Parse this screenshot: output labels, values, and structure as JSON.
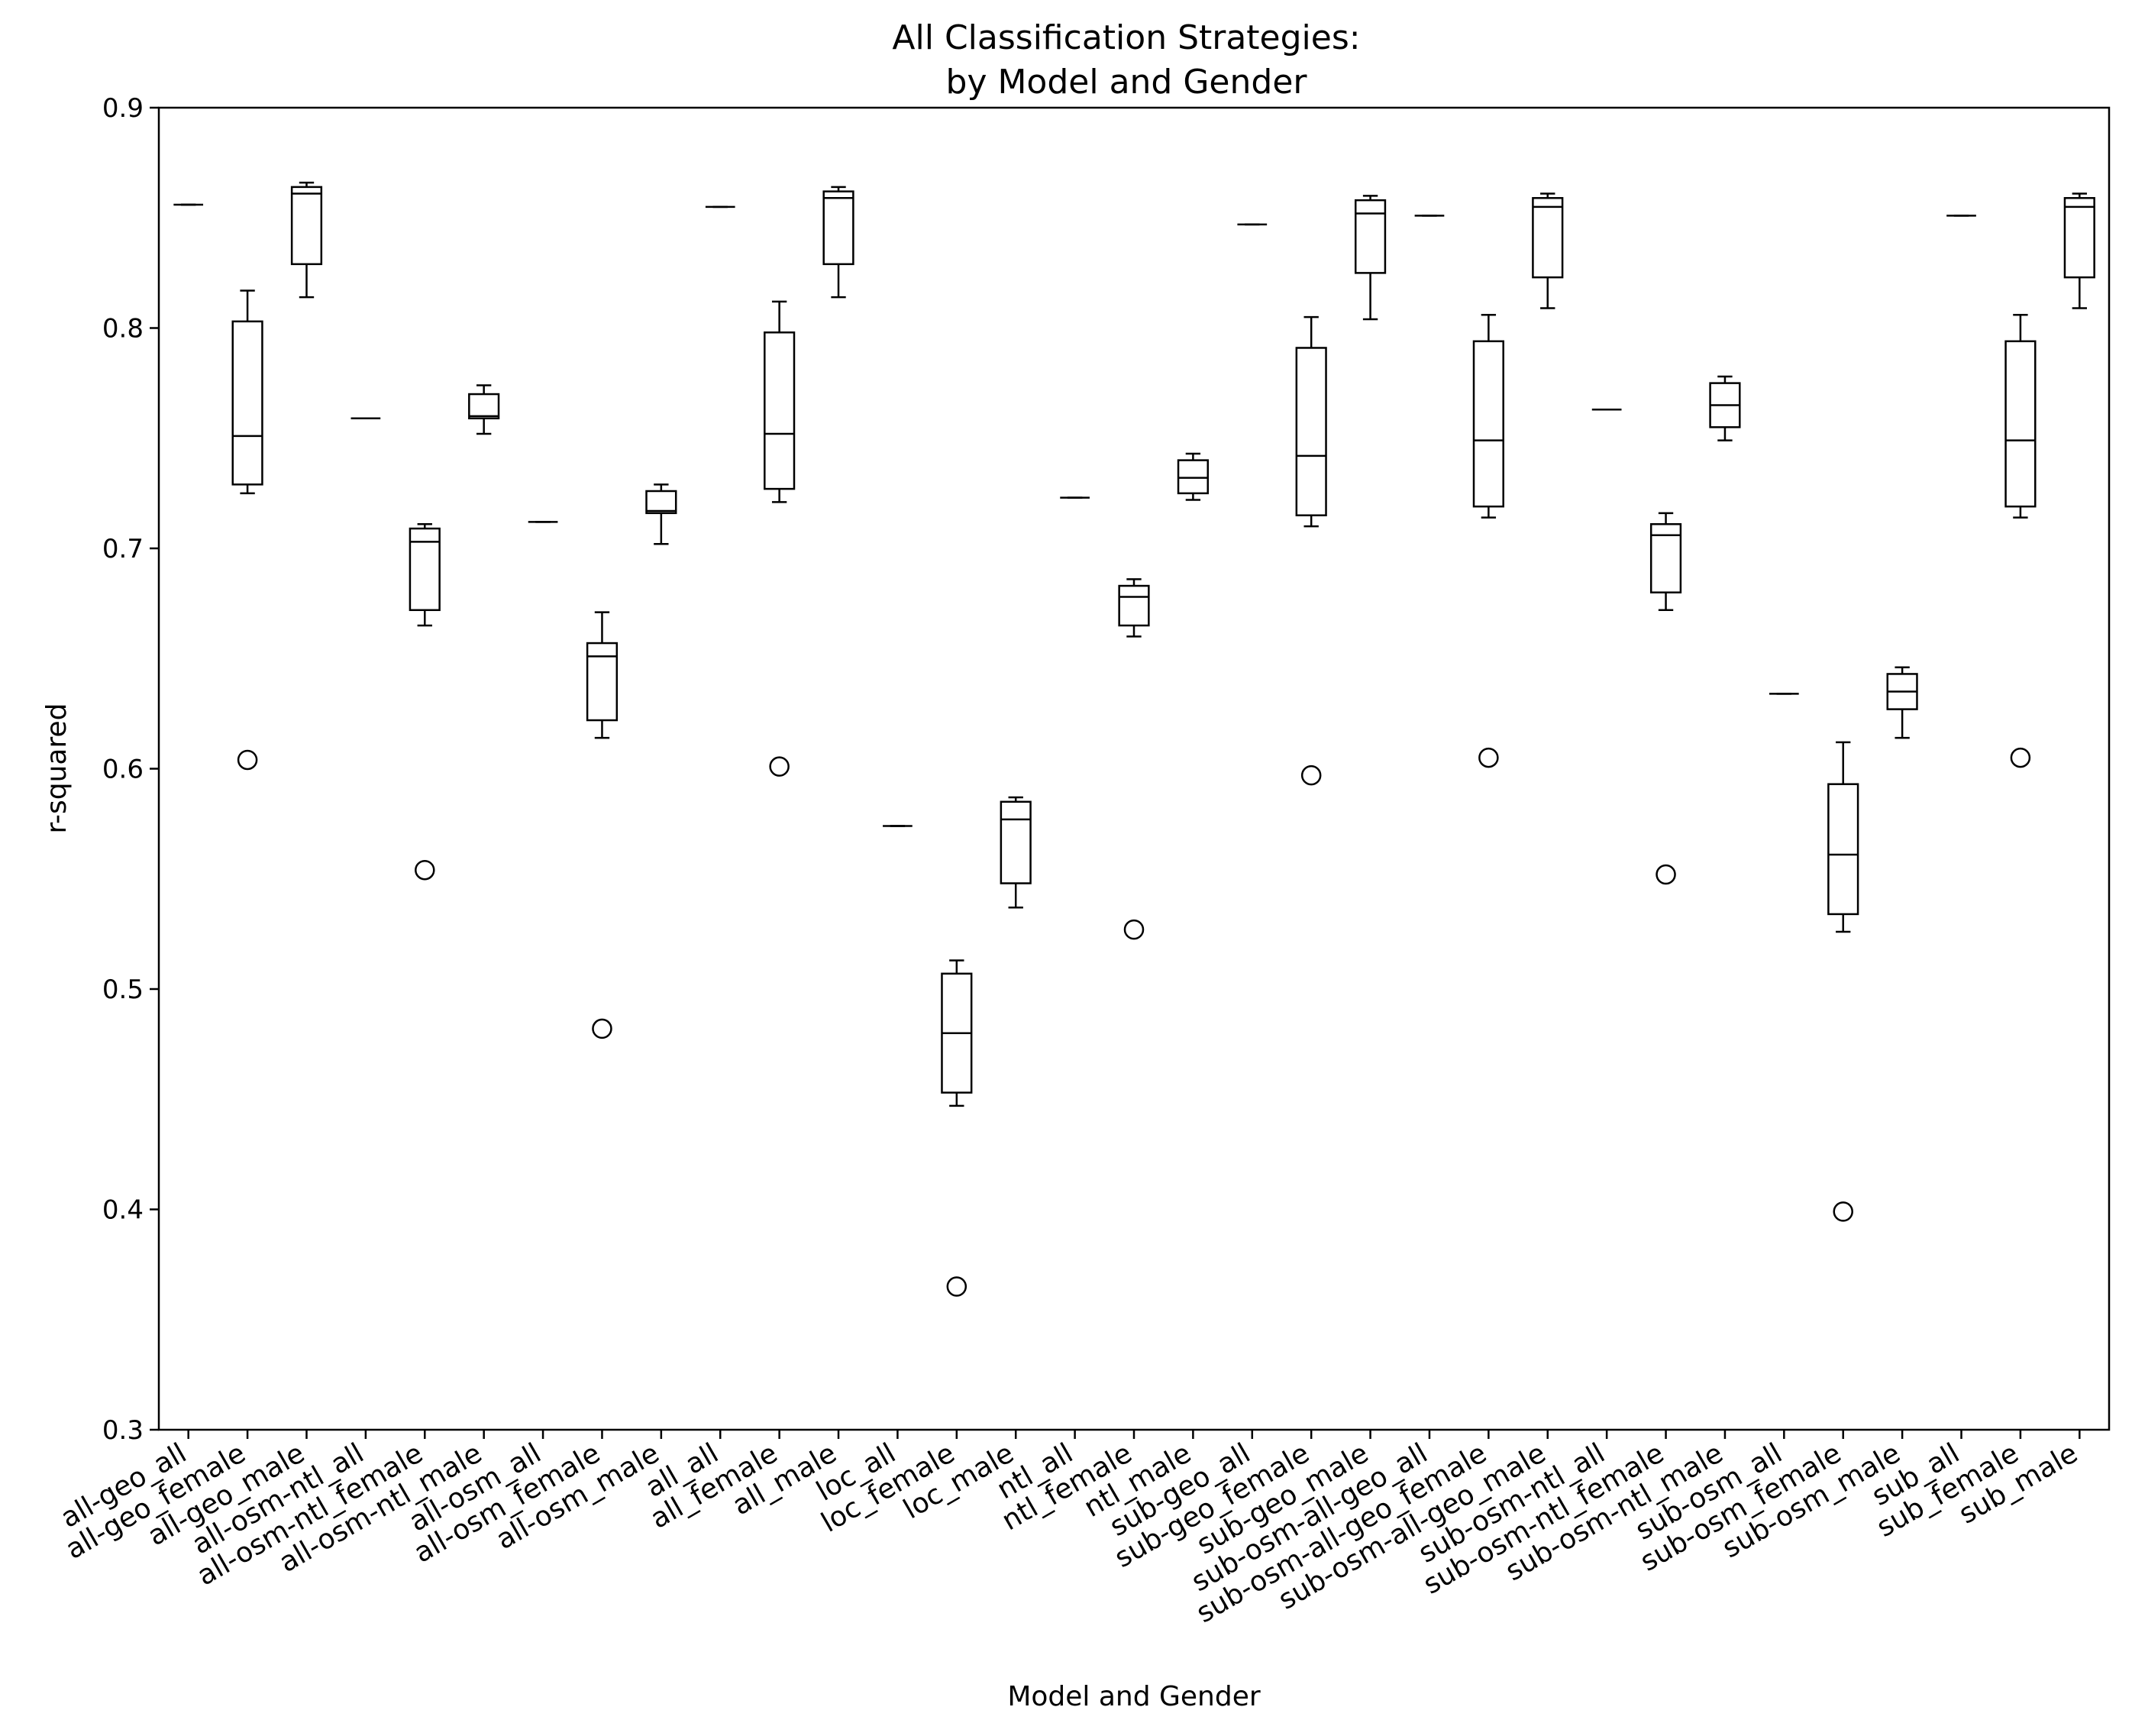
{
  "chart_data": {
    "type": "box",
    "title": "All Classification Strategies:",
    "subtitle": "by Model and Gender",
    "xlabel": "Model and Gender",
    "ylabel": "r-squared",
    "ylim": [
      0.3,
      0.9
    ],
    "yticks": [
      "0.3",
      "0.4",
      "0.5",
      "0.6",
      "0.7",
      "0.8",
      "0.9"
    ],
    "grid": false,
    "categories": [
      "all-geo_all",
      "all-geo_female",
      "all-geo_male",
      "all-osm-ntl_all",
      "all-osm-ntl_female",
      "all-osm-ntl_male",
      "all-osm_all",
      "all-osm_female",
      "all-osm_male",
      "all_all",
      "all_female",
      "all_male",
      "loc_all",
      "loc_female",
      "loc_male",
      "ntl_all",
      "ntl_female",
      "ntl_male",
      "sub-geo_all",
      "sub-geo_female",
      "sub-geo_male",
      "sub-osm-all-geo_all",
      "sub-osm-all-geo_female",
      "sub-osm-all-geo_male",
      "sub-osm-ntl_all",
      "sub-osm-ntl_female",
      "sub-osm-ntl_male",
      "sub-osm_all",
      "sub-osm_female",
      "sub-osm_male",
      "sub_all",
      "sub_female",
      "sub_male"
    ],
    "boxes": [
      {
        "whislo": 0.856,
        "q1": 0.856,
        "med": 0.856,
        "q3": 0.856,
        "whishi": 0.856,
        "fliers": []
      },
      {
        "whislo": 0.725,
        "q1": 0.729,
        "med": 0.751,
        "q3": 0.803,
        "whishi": 0.817,
        "fliers": [
          0.604
        ]
      },
      {
        "whislo": 0.814,
        "q1": 0.829,
        "med": 0.861,
        "q3": 0.864,
        "whishi": 0.866,
        "fliers": []
      },
      {
        "whislo": 0.759,
        "q1": 0.759,
        "med": 0.759,
        "q3": 0.759,
        "whishi": 0.759,
        "fliers": []
      },
      {
        "whislo": 0.665,
        "q1": 0.672,
        "med": 0.703,
        "q3": 0.709,
        "whishi": 0.711,
        "fliers": [
          0.554
        ]
      },
      {
        "whislo": 0.752,
        "q1": 0.759,
        "med": 0.76,
        "q3": 0.77,
        "whishi": 0.774,
        "fliers": []
      },
      {
        "whislo": 0.712,
        "q1": 0.712,
        "med": 0.712,
        "q3": 0.712,
        "whishi": 0.712,
        "fliers": []
      },
      {
        "whislo": 0.614,
        "q1": 0.622,
        "med": 0.651,
        "q3": 0.657,
        "whishi": 0.671,
        "fliers": [
          0.482
        ]
      },
      {
        "whislo": 0.702,
        "q1": 0.716,
        "med": 0.717,
        "q3": 0.726,
        "whishi": 0.729,
        "fliers": []
      },
      {
        "whislo": 0.855,
        "q1": 0.855,
        "med": 0.855,
        "q3": 0.855,
        "whishi": 0.855,
        "fliers": []
      },
      {
        "whislo": 0.721,
        "q1": 0.727,
        "med": 0.752,
        "q3": 0.798,
        "whishi": 0.812,
        "fliers": [
          0.601
        ]
      },
      {
        "whislo": 0.814,
        "q1": 0.829,
        "med": 0.859,
        "q3": 0.862,
        "whishi": 0.864,
        "fliers": []
      },
      {
        "whislo": 0.574,
        "q1": 0.574,
        "med": 0.574,
        "q3": 0.574,
        "whishi": 0.574,
        "fliers": []
      },
      {
        "whislo": 0.447,
        "q1": 0.453,
        "med": 0.48,
        "q3": 0.507,
        "whishi": 0.513,
        "fliers": [
          0.365
        ]
      },
      {
        "whislo": 0.537,
        "q1": 0.548,
        "med": 0.577,
        "q3": 0.585,
        "whishi": 0.587,
        "fliers": []
      },
      {
        "whislo": 0.723,
        "q1": 0.723,
        "med": 0.723,
        "q3": 0.723,
        "whishi": 0.723,
        "fliers": []
      },
      {
        "whislo": 0.66,
        "q1": 0.665,
        "med": 0.678,
        "q3": 0.683,
        "whishi": 0.686,
        "fliers": [
          0.527
        ]
      },
      {
        "whislo": 0.722,
        "q1": 0.725,
        "med": 0.732,
        "q3": 0.74,
        "whishi": 0.743,
        "fliers": []
      },
      {
        "whislo": 0.847,
        "q1": 0.847,
        "med": 0.847,
        "q3": 0.847,
        "whishi": 0.847,
        "fliers": []
      },
      {
        "whislo": 0.71,
        "q1": 0.715,
        "med": 0.742,
        "q3": 0.791,
        "whishi": 0.805,
        "fliers": [
          0.597
        ]
      },
      {
        "whislo": 0.804,
        "q1": 0.825,
        "med": 0.852,
        "q3": 0.858,
        "whishi": 0.86,
        "fliers": []
      },
      {
        "whislo": 0.851,
        "q1": 0.851,
        "med": 0.851,
        "q3": 0.851,
        "whishi": 0.851,
        "fliers": []
      },
      {
        "whislo": 0.714,
        "q1": 0.719,
        "med": 0.749,
        "q3": 0.794,
        "whishi": 0.806,
        "fliers": [
          0.605
        ]
      },
      {
        "whislo": 0.809,
        "q1": 0.823,
        "med": 0.855,
        "q3": 0.859,
        "whishi": 0.861,
        "fliers": []
      },
      {
        "whislo": 0.763,
        "q1": 0.763,
        "med": 0.763,
        "q3": 0.763,
        "whishi": 0.763,
        "fliers": []
      },
      {
        "whislo": 0.672,
        "q1": 0.68,
        "med": 0.706,
        "q3": 0.711,
        "whishi": 0.716,
        "fliers": [
          0.552
        ]
      },
      {
        "whislo": 0.749,
        "q1": 0.755,
        "med": 0.765,
        "q3": 0.775,
        "whishi": 0.778,
        "fliers": []
      },
      {
        "whislo": 0.634,
        "q1": 0.634,
        "med": 0.634,
        "q3": 0.634,
        "whishi": 0.634,
        "fliers": []
      },
      {
        "whislo": 0.526,
        "q1": 0.534,
        "med": 0.561,
        "q3": 0.593,
        "whishi": 0.612,
        "fliers": [
          0.399
        ]
      },
      {
        "whislo": 0.614,
        "q1": 0.627,
        "med": 0.635,
        "q3": 0.643,
        "whishi": 0.646,
        "fliers": []
      },
      {
        "whislo": 0.851,
        "q1": 0.851,
        "med": 0.851,
        "q3": 0.851,
        "whishi": 0.851,
        "fliers": []
      },
      {
        "whislo": 0.714,
        "q1": 0.719,
        "med": 0.749,
        "q3": 0.794,
        "whishi": 0.806,
        "fliers": [
          0.605
        ]
      },
      {
        "whislo": 0.809,
        "q1": 0.823,
        "med": 0.855,
        "q3": 0.859,
        "whishi": 0.861,
        "fliers": []
      }
    ]
  }
}
